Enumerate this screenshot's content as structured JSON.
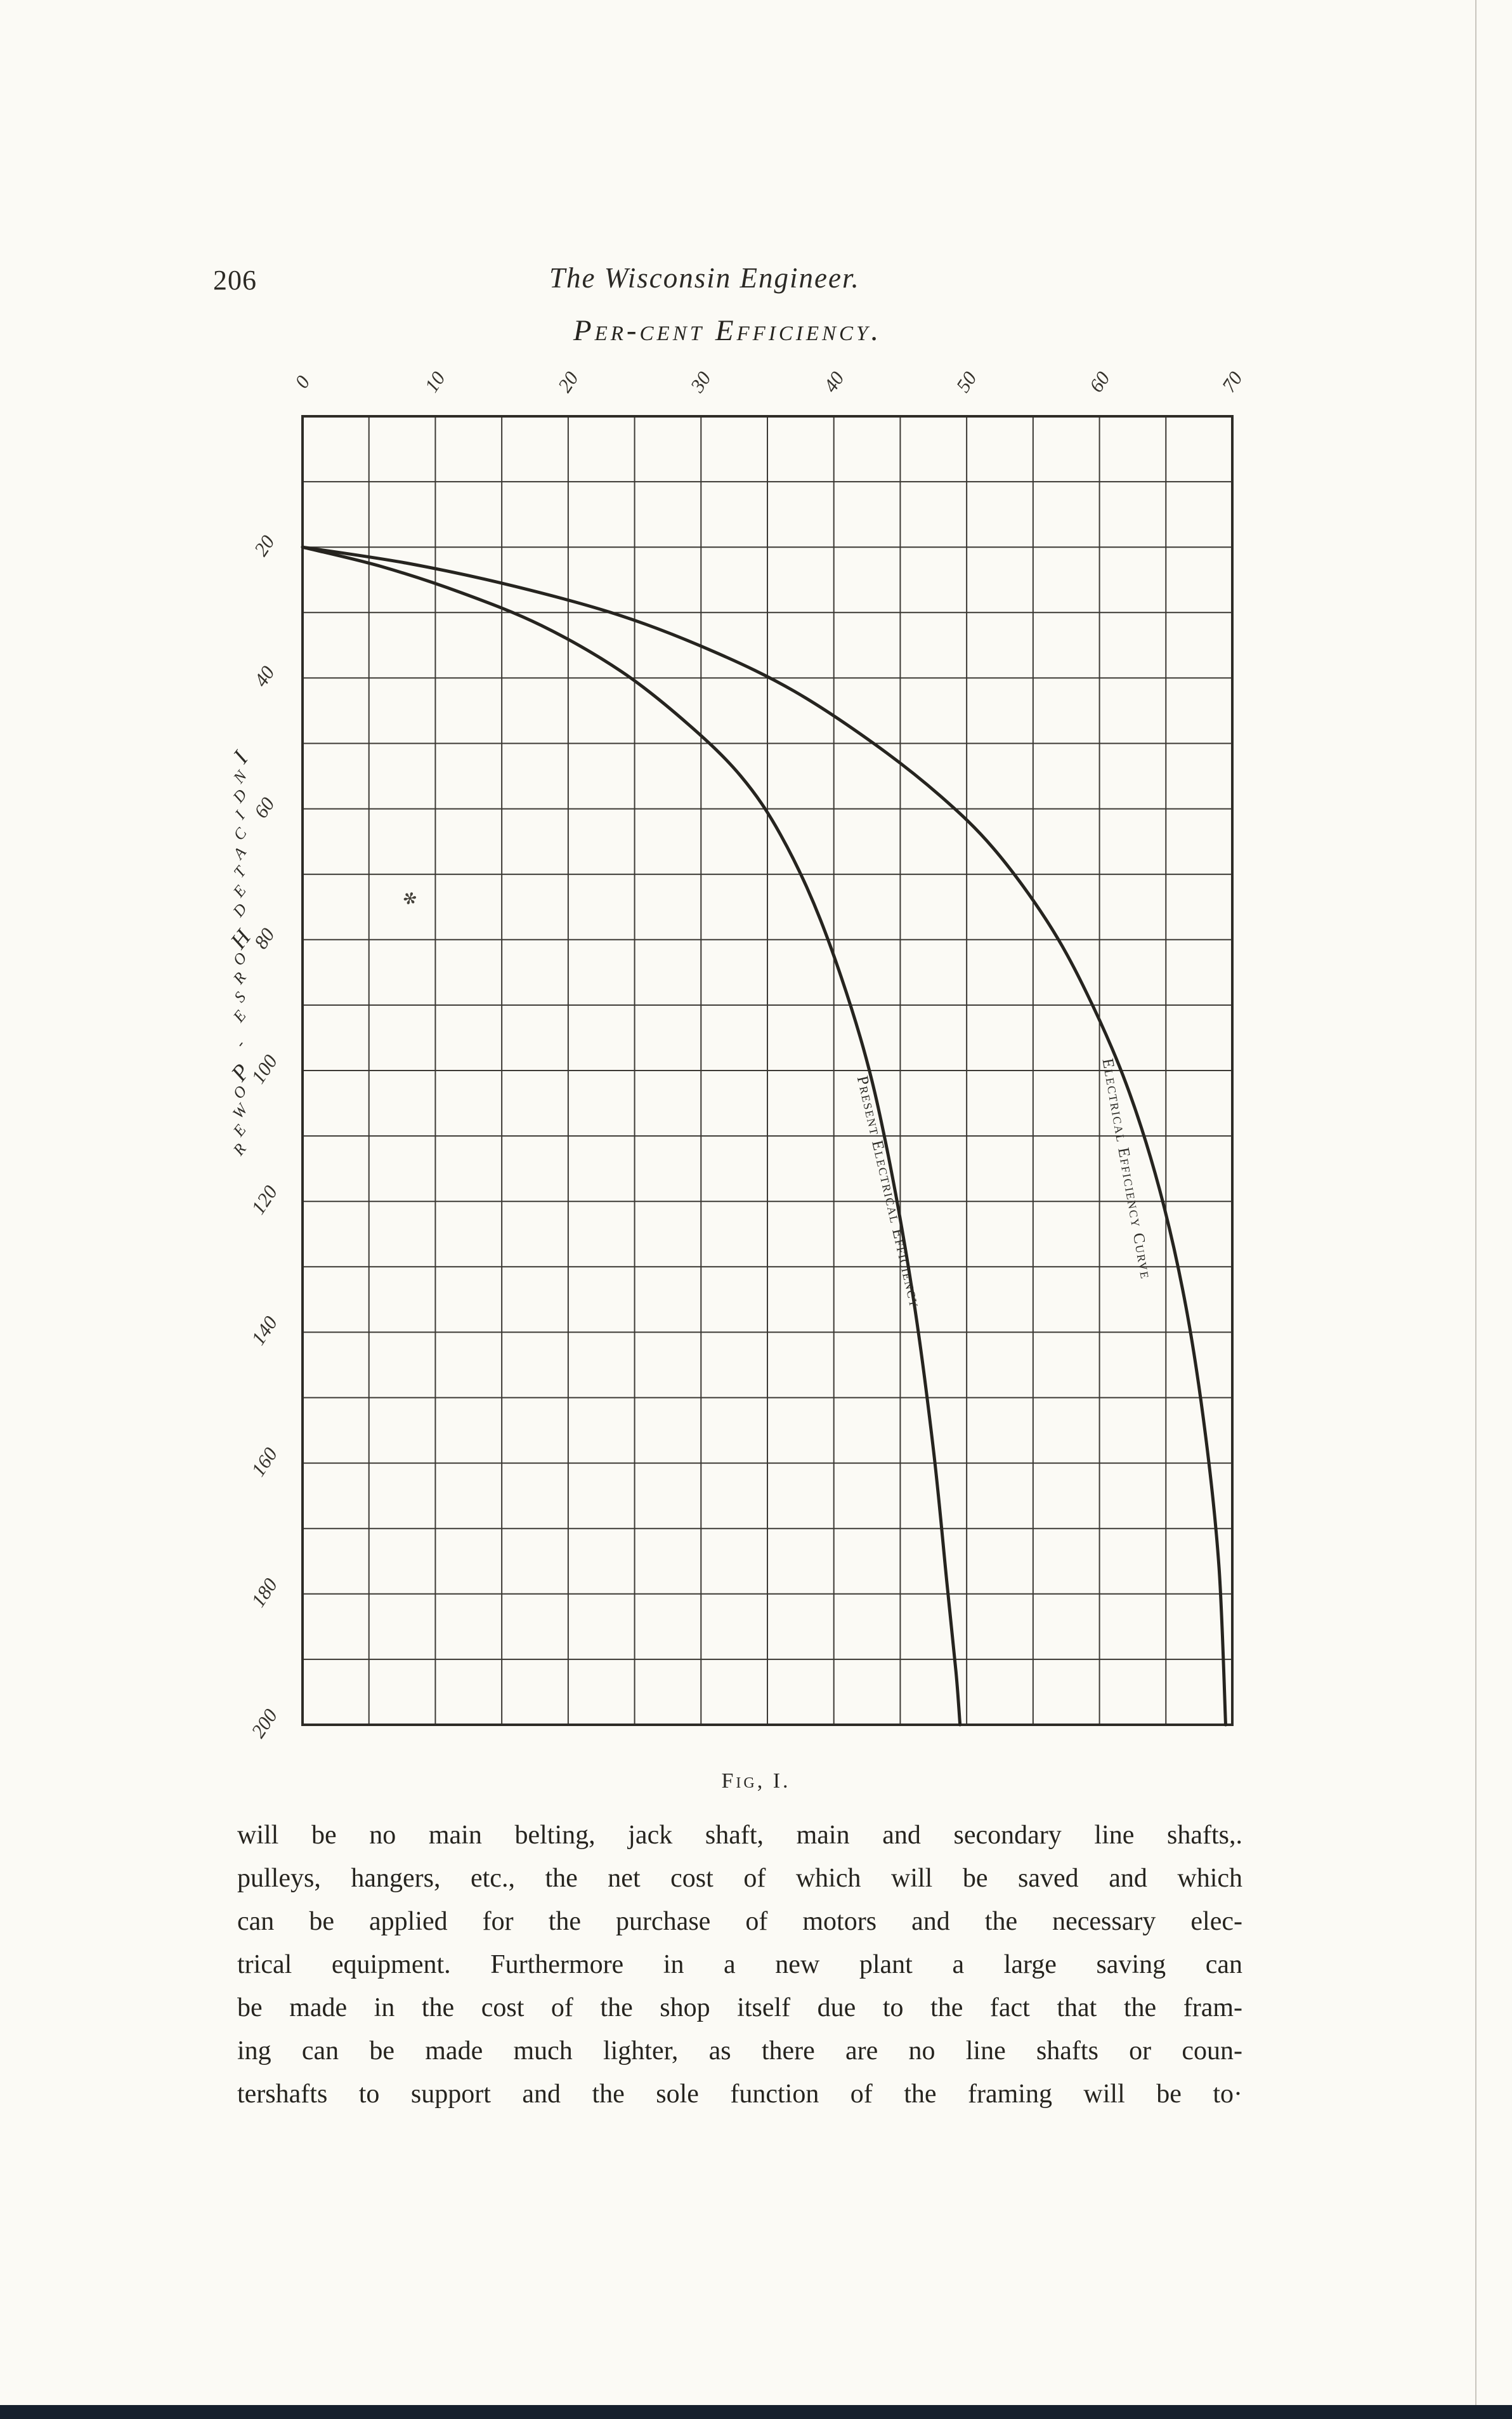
{
  "page": {
    "page_number": "206",
    "journal_title": "The Wisconsin Engineer.",
    "caption": "Fig, I.",
    "body_lines": [
      "will be no main belting, jack shaft, main and secondary line shafts,.",
      "pulleys, hangers, etc., the net cost of which will be saved and which",
      "can be applied for the purchase of motors and the necessary elec-",
      "trical equipment.  Furthermore in a new plant a large saving can",
      "be made in the cost of the shop itself due to the fact that the fram-",
      "ing can be made much lighter, as there are no line shafts or coun-",
      "tershafts to support and the sole function of the framing will be to·"
    ]
  },
  "chart_data": {
    "type": "line",
    "title": "Fig, I.",
    "xlabel": "Per-cent Efficiency.",
    "ylabel": "Indicated Horse - Power",
    "xlim": [
      0,
      70
    ],
    "ylim": [
      0,
      200
    ],
    "y_axis_direction": "down",
    "grid": true,
    "grid_step_x": 5,
    "grid_step_y": 10,
    "x_ticks": [
      0,
      10,
      20,
      30,
      40,
      50,
      60,
      70
    ],
    "y_ticks": [
      20,
      40,
      60,
      80,
      100,
      120,
      140,
      160,
      180,
      200
    ],
    "legend_position": "labels-along-curves",
    "series": [
      {
        "name": "Present Electrical Efficiency",
        "x_is": "percent_efficiency",
        "y_is": "indicated_horse_power",
        "points": [
          [
            0,
            20
          ],
          [
            6,
            23
          ],
          [
            12,
            27
          ],
          [
            18,
            32
          ],
          [
            24,
            39
          ],
          [
            29,
            47
          ],
          [
            33,
            55
          ],
          [
            36,
            64
          ],
          [
            39,
            77
          ],
          [
            42,
            95
          ],
          [
            44,
            112
          ],
          [
            46,
            135
          ],
          [
            47.5,
            158
          ],
          [
            48.5,
            178
          ],
          [
            49.2,
            192
          ],
          [
            49.5,
            200
          ]
        ]
      },
      {
        "name": "Electrical Efficiency Curve",
        "x_is": "percent_efficiency",
        "y_is": "indicated_horse_power",
        "points": [
          [
            0,
            20
          ],
          [
            8,
            22.5
          ],
          [
            16,
            26
          ],
          [
            24,
            30.5
          ],
          [
            31,
            36
          ],
          [
            37,
            42
          ],
          [
            43,
            50
          ],
          [
            48,
            58
          ],
          [
            52,
            66
          ],
          [
            56,
            77
          ],
          [
            59,
            88
          ],
          [
            62,
            102
          ],
          [
            64.5,
            118
          ],
          [
            66.5,
            136
          ],
          [
            68,
            156
          ],
          [
            69,
            176
          ],
          [
            69.5,
            200
          ]
        ]
      }
    ]
  },
  "colors": {
    "paper": "#fbfaf5",
    "ink": "#26241f",
    "grid_line": "#3b3833",
    "grid_border": "#2e2c27",
    "scan_bar": "#16202d"
  }
}
